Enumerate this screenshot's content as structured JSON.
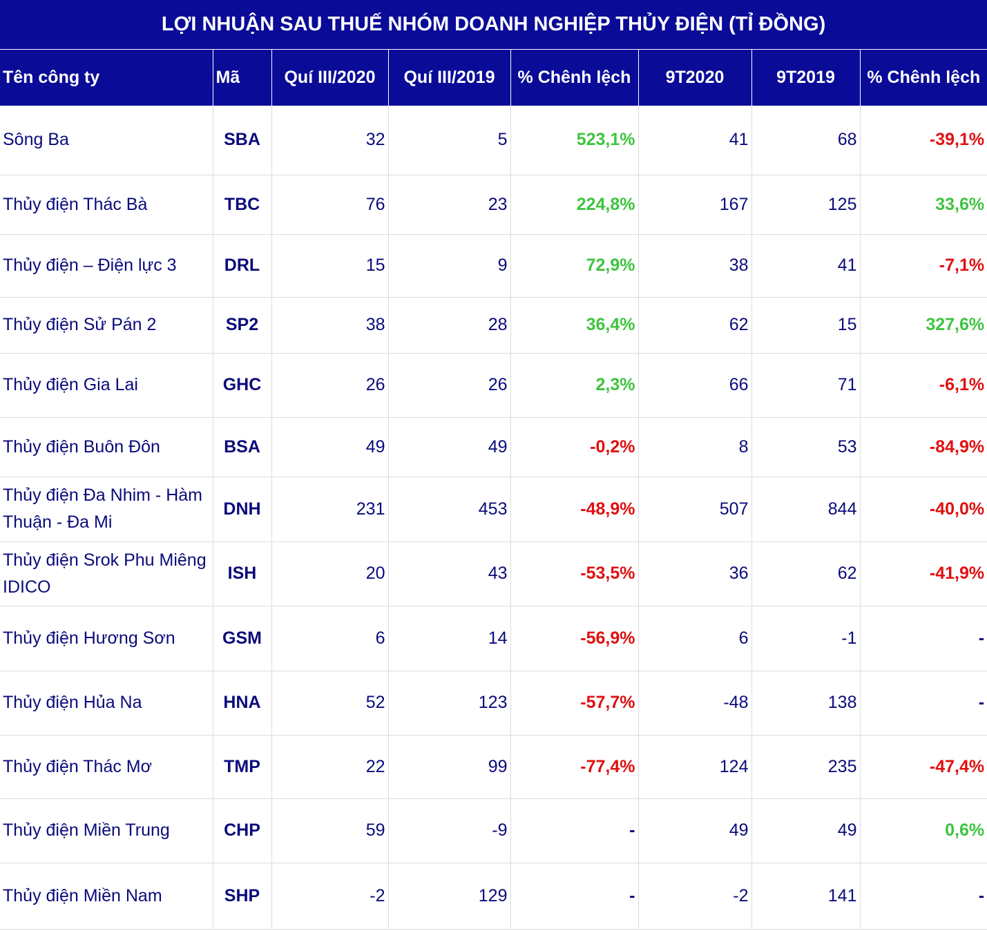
{
  "chart_data": {
    "type": "table",
    "title": "LỢI NHUẬN SAU THUẾ NHÓM DOANH NGHIỆP THỦY ĐIỆN (TỈ ĐỒNG)",
    "columns": [
      "Tên công ty",
      "Mã",
      "Quí III/2020",
      "Quí III/2019",
      "% Chênh lệch",
      "9T2020",
      "9T2019",
      "% Chênh lệch"
    ],
    "rows": [
      {
        "name": "Sông Ba",
        "code": "SBA",
        "q3_2020": "32",
        "q3_2019": "5",
        "q_change": "523,1%",
        "q_sign": "pos",
        "t9_2020": "41",
        "t9_2019": "68",
        "t_change": "-39,1%",
        "t_sign": "neg"
      },
      {
        "name": "Thủy điện Thác Bà",
        "code": "TBC",
        "q3_2020": "76",
        "q3_2019": "23",
        "q_change": "224,8%",
        "q_sign": "pos",
        "t9_2020": "167",
        "t9_2019": "125",
        "t_change": "33,6%",
        "t_sign": "pos"
      },
      {
        "name": "Thủy điện – Điện lực 3",
        "code": "DRL",
        "q3_2020": "15",
        "q3_2019": "9",
        "q_change": "72,9%",
        "q_sign": "pos",
        "t9_2020": "38",
        "t9_2019": "41",
        "t_change": "-7,1%",
        "t_sign": "neg"
      },
      {
        "name": "Thủy điện Sử Pán 2",
        "code": "SP2",
        "q3_2020": "38",
        "q3_2019": "28",
        "q_change": "36,4%",
        "q_sign": "pos",
        "t9_2020": "62",
        "t9_2019": "15",
        "t_change": "327,6%",
        "t_sign": "pos"
      },
      {
        "name": "Thủy điện Gia Lai",
        "code": "GHC",
        "q3_2020": "26",
        "q3_2019": "26",
        "q_change": "2,3%",
        "q_sign": "pos",
        "t9_2020": "66",
        "t9_2019": "71",
        "t_change": "-6,1%",
        "t_sign": "neg"
      },
      {
        "name": "Thủy điện Buôn Đôn",
        "code": "BSA",
        "q3_2020": "49",
        "q3_2019": "49",
        "q_change": "-0,2%",
        "q_sign": "neg",
        "t9_2020": "8",
        "t9_2019": "53",
        "t_change": "-84,9%",
        "t_sign": "neg"
      },
      {
        "name": "Thủy điện Đa Nhim - Hàm Thuận - Đa Mi",
        "code": "DNH",
        "q3_2020": "231",
        "q3_2019": "453",
        "q_change": "-48,9%",
        "q_sign": "neg",
        "t9_2020": "507",
        "t9_2019": "844",
        "t_change": "-40,0%",
        "t_sign": "neg"
      },
      {
        "name": "Thủy điện Srok Phu Miêng IDICO",
        "code": "ISH",
        "q3_2020": "20",
        "q3_2019": "43",
        "q_change": "-53,5%",
        "q_sign": "neg",
        "t9_2020": "36",
        "t9_2019": "62",
        "t_change": "-41,9%",
        "t_sign": "neg"
      },
      {
        "name": "Thủy điện Hương Sơn",
        "code": "GSM",
        "q3_2020": "6",
        "q3_2019": "14",
        "q_change": "-56,9%",
        "q_sign": "neg",
        "t9_2020": "6",
        "t9_2019": "-1",
        "t_change": "-",
        "t_sign": "nil"
      },
      {
        "name": "Thủy điện Hủa Na",
        "code": "HNA",
        "q3_2020": "52",
        "q3_2019": "123",
        "q_change": "-57,7%",
        "q_sign": "neg",
        "t9_2020": "-48",
        "t9_2019": "138",
        "t_change": "-",
        "t_sign": "nil"
      },
      {
        "name": "Thủy điện Thác Mơ",
        "code": "TMP",
        "q3_2020": "22",
        "q3_2019": "99",
        "q_change": "-77,4%",
        "q_sign": "neg",
        "t9_2020": "124",
        "t9_2019": "235",
        "t_change": "-47,4%",
        "t_sign": "neg"
      },
      {
        "name": "Thủy điện Miền Trung",
        "code": "CHP",
        "q3_2020": "59",
        "q3_2019": "-9",
        "q_change": "-",
        "q_sign": "nil",
        "t9_2020": "49",
        "t9_2019": "49",
        "t_change": "0,6%",
        "t_sign": "pos"
      },
      {
        "name": "Thủy điện Miền Nam",
        "code": "SHP",
        "q3_2020": "-2",
        "q3_2019": "129",
        "q_change": "-",
        "q_sign": "nil",
        "t9_2020": "-2",
        "t9_2019": "141",
        "t_change": "-",
        "t_sign": "nil"
      }
    ],
    "colors": {
      "header_bg": "#0a0b97",
      "text": "#0a0b7a",
      "positive": "#3ec43e",
      "negative": "#e01010"
    }
  }
}
